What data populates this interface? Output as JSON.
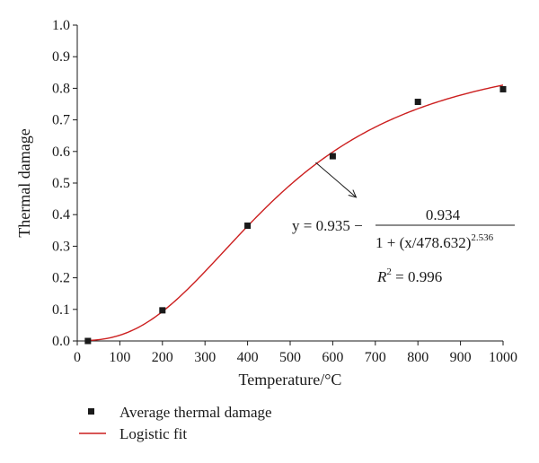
{
  "chart_data": {
    "type": "scatter",
    "title": "",
    "xlabel": "Temperature/°C",
    "ylabel": "Thermal damage",
    "xlim": [
      0,
      1000
    ],
    "ylim": [
      0,
      1.0
    ],
    "xticks": [
      "0",
      "100",
      "200",
      "300",
      "400",
      "500",
      "600",
      "700",
      "800",
      "900",
      "1000"
    ],
    "yticks": [
      "0.0",
      "0.1",
      "0.2",
      "0.3",
      "0.4",
      "0.5",
      "0.6",
      "0.7",
      "0.8",
      "0.9",
      "1.0"
    ],
    "grid": false,
    "legend_placement": "bottom",
    "series": [
      {
        "name": "Average thermal damage",
        "kind": "scatter",
        "marker": "square",
        "color": "#1a1a1a",
        "x": [
          25,
          200,
          400,
          600,
          800,
          1000
        ],
        "y": [
          0.0,
          0.097,
          0.365,
          0.585,
          0.757,
          0.797
        ]
      },
      {
        "name": "Logistic fit",
        "kind": "line",
        "color": "#cc1f1f",
        "model": {
          "A1": 0.935,
          "A2": 0.934,
          "x0": 478.632,
          "p": 2.536
        },
        "x_range": [
          25,
          1000
        ]
      }
    ],
    "annotation": {
      "y_label": "y = 0.935 −",
      "numerator": "0.934",
      "denominator_base": "1 + (x/478.632)",
      "denominator_exponent": "2.536",
      "r2_label": "R",
      "r2_exponent": "2",
      "r2_value": " = 0.996",
      "arrow_from": [
        560,
        0.565
      ],
      "arrow_to": [
        655,
        0.455
      ]
    }
  }
}
